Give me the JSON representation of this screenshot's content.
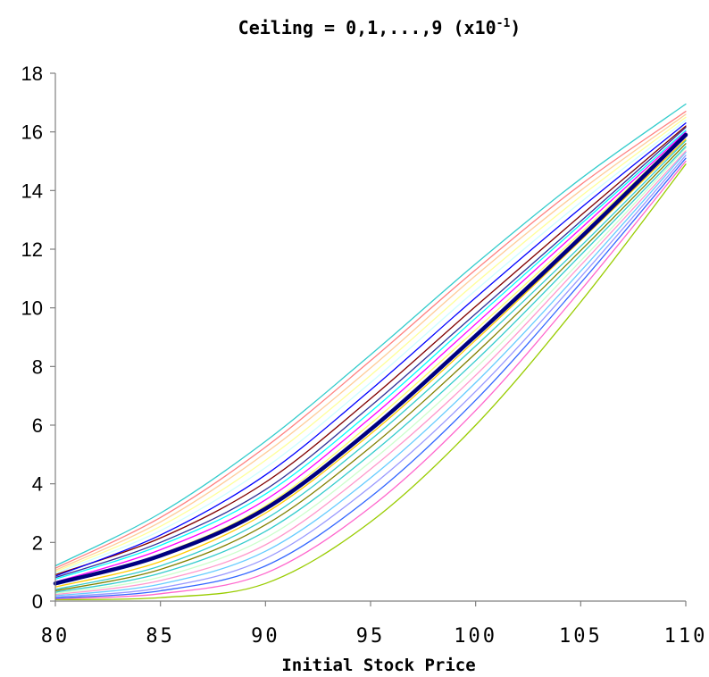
{
  "chart_data": {
    "type": "line",
    "title": "Ceiling = 0,1,...,9 (x10⁻¹)",
    "title_parts": {
      "main": "Ceiling = 0,1,...,9 (x10",
      "sup": "-1",
      "close": ")"
    },
    "xlabel": "Initial Stock Price",
    "ylabel": "",
    "xlim": [
      80,
      110
    ],
    "ylim": [
      0,
      18
    ],
    "xticks": [
      "80",
      "85",
      "90",
      "95",
      "100",
      "105",
      "110"
    ],
    "yticks": [
      "0",
      "2",
      "4",
      "6",
      "8",
      "10",
      "12",
      "14",
      "16",
      "18"
    ],
    "grid": false,
    "legend": "none",
    "x": [
      80,
      85,
      90,
      95,
      100,
      105,
      110
    ],
    "series": [
      {
        "color": "#99CC00",
        "width": 1.3,
        "values": [
          0.05,
          0.12,
          0.6,
          2.7,
          6.0,
          10.2,
          14.9
        ]
      },
      {
        "color": "#FF66CC",
        "width": 1.3,
        "values": [
          0.08,
          0.25,
          0.95,
          3.2,
          6.5,
          10.6,
          15.0
        ]
      },
      {
        "color": "#3366FF",
        "width": 1.3,
        "values": [
          0.1,
          0.35,
          1.2,
          3.55,
          6.85,
          10.85,
          15.1
        ]
      },
      {
        "color": "#9999FF",
        "width": 1.3,
        "values": [
          0.14,
          0.45,
          1.45,
          3.9,
          7.15,
          11.05,
          15.2
        ]
      },
      {
        "color": "#66CCFF",
        "width": 1.3,
        "values": [
          0.18,
          0.58,
          1.7,
          4.2,
          7.45,
          11.25,
          15.3
        ]
      },
      {
        "color": "#FF99CC",
        "width": 1.3,
        "values": [
          0.22,
          0.7,
          1.92,
          4.5,
          7.7,
          11.45,
          15.35
        ]
      },
      {
        "color": "#CCFFCC",
        "width": 1.3,
        "values": [
          0.26,
          0.82,
          2.15,
          4.75,
          7.95,
          11.6,
          15.45
        ]
      },
      {
        "color": "#33CCCC",
        "width": 1.3,
        "values": [
          0.3,
          0.95,
          2.38,
          5.0,
          8.2,
          11.8,
          15.5
        ]
      },
      {
        "color": "#808000",
        "width": 1.3,
        "values": [
          0.35,
          1.08,
          2.6,
          5.25,
          8.45,
          11.95,
          15.6
        ]
      },
      {
        "color": "#33CCCC",
        "width": 1.3,
        "values": [
          0.4,
          1.2,
          2.8,
          5.5,
          8.7,
          12.1,
          15.7
        ]
      },
      {
        "color": "#FFCC00",
        "width": 1.3,
        "values": [
          0.48,
          1.35,
          3.0,
          5.7,
          8.9,
          12.3,
          15.75
        ]
      },
      {
        "color": "#000080",
        "width": 4.5,
        "values": [
          0.6,
          1.55,
          3.15,
          5.85,
          9.05,
          12.4,
          15.9
        ]
      },
      {
        "color": "#FFFF66",
        "width": 1.3,
        "values": [
          0.55,
          1.6,
          3.25,
          6.05,
          9.25,
          12.55,
          15.95
        ]
      },
      {
        "color": "#FF00FF",
        "width": 1.3,
        "values": [
          0.65,
          1.75,
          3.45,
          6.25,
          9.45,
          12.7,
          16.0
        ]
      },
      {
        "color": "#00FFFF",
        "width": 1.3,
        "values": [
          0.75,
          1.9,
          3.65,
          6.45,
          9.65,
          12.85,
          16.05
        ]
      },
      {
        "color": "#333399",
        "width": 1.3,
        "values": [
          0.8,
          2.0,
          3.8,
          6.65,
          9.8,
          12.95,
          16.15
        ]
      },
      {
        "color": "#800000",
        "width": 1.3,
        "values": [
          0.9,
          2.15,
          4.05,
          6.9,
          10.05,
          13.15,
          16.2
        ]
      },
      {
        "color": "#0000FF",
        "width": 1.3,
        "values": [
          0.85,
          2.25,
          4.3,
          7.2,
          10.35,
          13.4,
          16.3
        ]
      },
      {
        "color": "#CCFFFF",
        "width": 1.3,
        "values": [
          0.95,
          2.4,
          4.55,
          7.45,
          10.6,
          13.6,
          16.4
        ]
      },
      {
        "color": "#FFFF99",
        "width": 1.3,
        "values": [
          1.0,
          2.55,
          4.8,
          7.7,
          10.85,
          13.8,
          16.5
        ]
      },
      {
        "color": "#FFCC99",
        "width": 1.3,
        "values": [
          1.05,
          2.7,
          5.05,
          7.95,
          11.1,
          14.0,
          16.6
        ]
      },
      {
        "color": "#FF8080",
        "width": 1.3,
        "values": [
          1.12,
          2.85,
          5.25,
          8.2,
          11.3,
          14.2,
          16.7
        ]
      },
      {
        "color": "#33CCCC",
        "width": 1.3,
        "values": [
          1.2,
          3.0,
          5.45,
          8.4,
          11.5,
          14.4,
          16.95
        ]
      }
    ]
  }
}
